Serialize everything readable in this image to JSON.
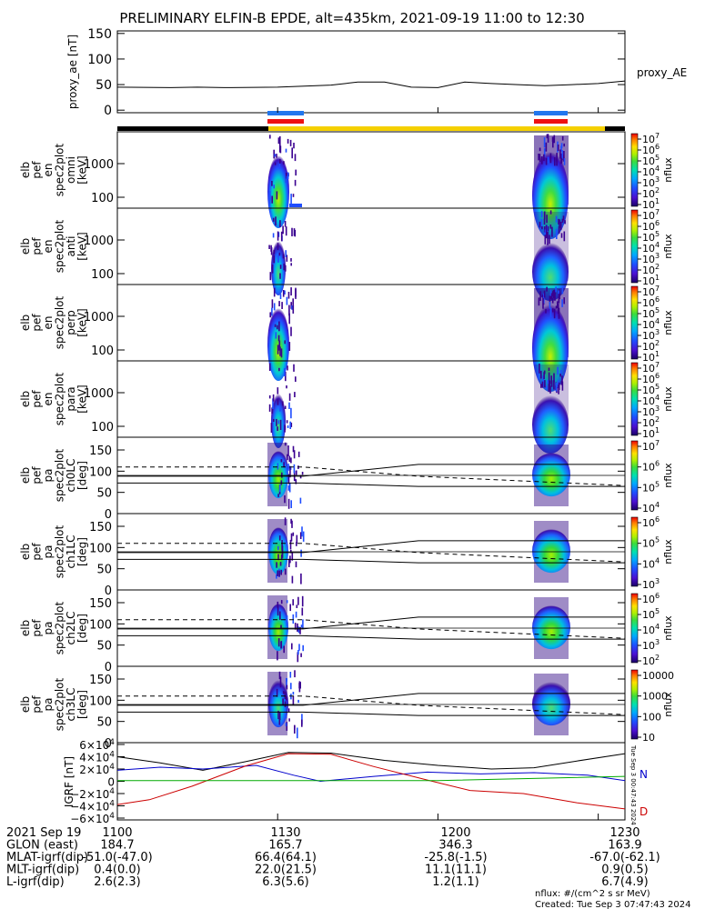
{
  "title": "PRELIMINARY ELFIN-B EPDE, alt=435km, 2021-09-19 11:00 to 12:30",
  "time_ticks": [
    "1100",
    "1130",
    "1200",
    "1230"
  ],
  "ae_panel": {
    "ylabel": "proxy_ae [nT]",
    "series_label": "proxy_AE",
    "yticks": [
      "0",
      "50",
      "100",
      "150"
    ],
    "chart_data": {
      "type": "line",
      "x_minutes": [
        0,
        10,
        15,
        20,
        30,
        35,
        40,
        45,
        50,
        55,
        60,
        65,
        70,
        75,
        80,
        85,
        90,
        95
      ],
      "values": [
        45,
        44,
        45,
        44,
        45,
        47,
        49,
        55,
        55,
        45,
        44,
        55,
        52,
        50,
        48,
        50,
        52,
        57
      ],
      "ylim": [
        -5,
        155
      ]
    }
  },
  "color_bars": {
    "science_zones_blue": [
      "1126-1130",
      "1150-1154"
    ],
    "science_zones_red": [
      "1126-1130",
      "1150-1154"
    ]
  },
  "energy_panels": [
    {
      "ylabel": [
        "elb",
        "pef",
        "en",
        "spec2plot",
        "omni",
        "[keV]"
      ],
      "yticks": [
        "100",
        "1000"
      ],
      "cb_ticks": [
        "10^7",
        "10^6",
        "10^5",
        "10^4",
        "10^3",
        "10^2",
        "10^1"
      ],
      "cb_label": "nflux"
    },
    {
      "ylabel": [
        "elb",
        "pef",
        "en",
        "spec2plot",
        "anti",
        "[keV]"
      ],
      "yticks": [
        "100",
        "1000"
      ],
      "cb_ticks": [
        "10^7",
        "10^6",
        "10^5",
        "10^4",
        "10^3",
        "10^2",
        "10^1"
      ],
      "cb_label": "nflux"
    },
    {
      "ylabel": [
        "elb",
        "pef",
        "en",
        "spec2plot",
        "perp",
        "[keV]"
      ],
      "yticks": [
        "100",
        "1000"
      ],
      "cb_ticks": [
        "10^7",
        "10^6",
        "10^5",
        "10^4",
        "10^3",
        "10^2",
        "10^1"
      ],
      "cb_label": "nflux"
    },
    {
      "ylabel": [
        "elb",
        "pef",
        "en",
        "spec2plot",
        "para",
        "[keV]"
      ],
      "yticks": [
        "100",
        "1000"
      ],
      "cb_ticks": [
        "10^7",
        "10^6",
        "10^5",
        "10^4",
        "10^3",
        "10^2",
        "10^1"
      ],
      "cb_label": "nflux"
    }
  ],
  "pa_panels": [
    {
      "ylabel": [
        "elb",
        "pef",
        "pa",
        "spec2plot",
        "ch0LC",
        "[deg]"
      ],
      "yticks": [
        "0",
        "50",
        "100",
        "150"
      ],
      "cb_ticks": [
        "10^7",
        "10^6",
        "10^5",
        "10^4"
      ],
      "cb_label": "nflux"
    },
    {
      "ylabel": [
        "elb",
        "pef",
        "pa",
        "spec2plot",
        "ch1LC",
        "[deg]"
      ],
      "yticks": [
        "0",
        "50",
        "100",
        "150"
      ],
      "cb_ticks": [
        "10^6",
        "10^5",
        "10^4",
        "10^3"
      ],
      "cb_label": "nflux"
    },
    {
      "ylabel": [
        "elb",
        "pef",
        "pa",
        "spec2plot",
        "ch2LC",
        "[deg]"
      ],
      "yticks": [
        "0",
        "50",
        "100",
        "150"
      ],
      "cb_ticks": [
        "10^6",
        "10^5",
        "10^4",
        "10^3",
        "10^2"
      ],
      "cb_label": "nflux"
    },
    {
      "ylabel": [
        "elb",
        "pef",
        "pa",
        "spec2plot",
        "ch3LC",
        "[deg]"
      ],
      "yticks": [
        "0",
        "50",
        "100",
        "150"
      ],
      "cb_ticks": [
        "10000",
        "1000",
        "100",
        "10"
      ],
      "cb_label": "nflux"
    }
  ],
  "igrf_panel": {
    "ylabel": "IGRF [nT]",
    "yticks": [
      "6×10^4",
      "4×10^4",
      "2×10^4",
      "0",
      "−2×10^4",
      "−4×10^4",
      "−6×10^4"
    ],
    "side_labels": {
      "N": "N",
      "D": "D"
    },
    "side_colors": {
      "N": "#0000cc",
      "D": "#cc0000"
    },
    "stamp": "Tue Sep  3 00:47:43 2024"
  },
  "orbit_table": {
    "rows": [
      {
        "label": "2021 Sep 19",
        "vals": [
          "1100",
          "1130",
          "1200",
          "1230"
        ]
      },
      {
        "label": "GLON (east)",
        "vals": [
          "184.7",
          "165.7",
          "346.3",
          "163.9"
        ]
      },
      {
        "label": "MLAT-igrf(dip)",
        "vals": [
          "-51.0(-47.0)",
          "66.4(64.1)",
          "-25.8(-1.5)",
          "-67.0(-62.1)"
        ]
      },
      {
        "label": "MLT-igrf(dip)",
        "vals": [
          "0.4(0.0)",
          "22.0(21.5)",
          "11.1(11.1)",
          "0.9(0.5)"
        ]
      },
      {
        "label": "L-igrf(dip)",
        "vals": [
          "2.6(2.3)",
          "6.3(5.6)",
          "1.2(1.1)",
          "6.7(4.9)"
        ]
      }
    ]
  },
  "footer": {
    "units": "nflux: #/(cm^2 s sr MeV)",
    "created": "Created: Tue Sep  3 07:47:43 2024"
  }
}
